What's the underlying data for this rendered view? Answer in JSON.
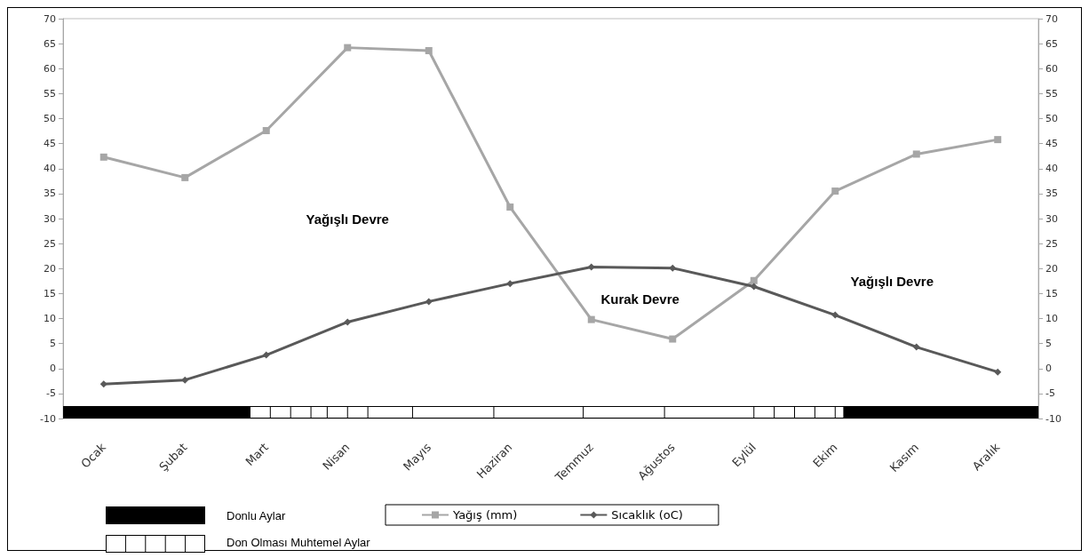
{
  "chart_data": {
    "type": "line",
    "categories": [
      "Ocak",
      "Şubat",
      "Mart",
      "Nisan",
      "Mayıs",
      "Haziran",
      "Temmuz",
      "Ağustos",
      "Eylül",
      "Ekim",
      "Kasım",
      "Aralık"
    ],
    "series": [
      {
        "name": "Yağış (mm)",
        "color": "#a6a6a6",
        "marker": "square",
        "values": [
          42.3,
          38.2,
          47.6,
          64.2,
          63.6,
          32.3,
          9.8,
          5.9,
          17.6,
          35.5,
          42.9,
          45.8
        ]
      },
      {
        "name": "Sıcaklık (oC)",
        "color": "#595959",
        "marker": "diamond",
        "values": [
          -3.1,
          -2.3,
          2.7,
          9.3,
          13.4,
          17.0,
          20.3,
          20.1,
          16.4,
          10.7,
          4.3,
          -0.7
        ]
      }
    ],
    "ylim": [
      -10,
      70
    ],
    "yticks": [
      -10,
      -5,
      0,
      5,
      10,
      15,
      20,
      25,
      30,
      35,
      40,
      45,
      50,
      55,
      60,
      65,
      70
    ],
    "y2lim": [
      -10,
      70
    ],
    "y2ticks": [
      -10,
      -5,
      0,
      5,
      10,
      15,
      20,
      25,
      30,
      35,
      40,
      45,
      50,
      55,
      60,
      65,
      70
    ],
    "grid": false,
    "legend": "bottom",
    "line_style": "solid",
    "annotations": [
      "Yağışlı Devre",
      "Kurak Devre",
      "Yağışlı Devre",
      "Donlu Aylar",
      "Don Olması Muhtemel Aylar"
    ]
  }
}
